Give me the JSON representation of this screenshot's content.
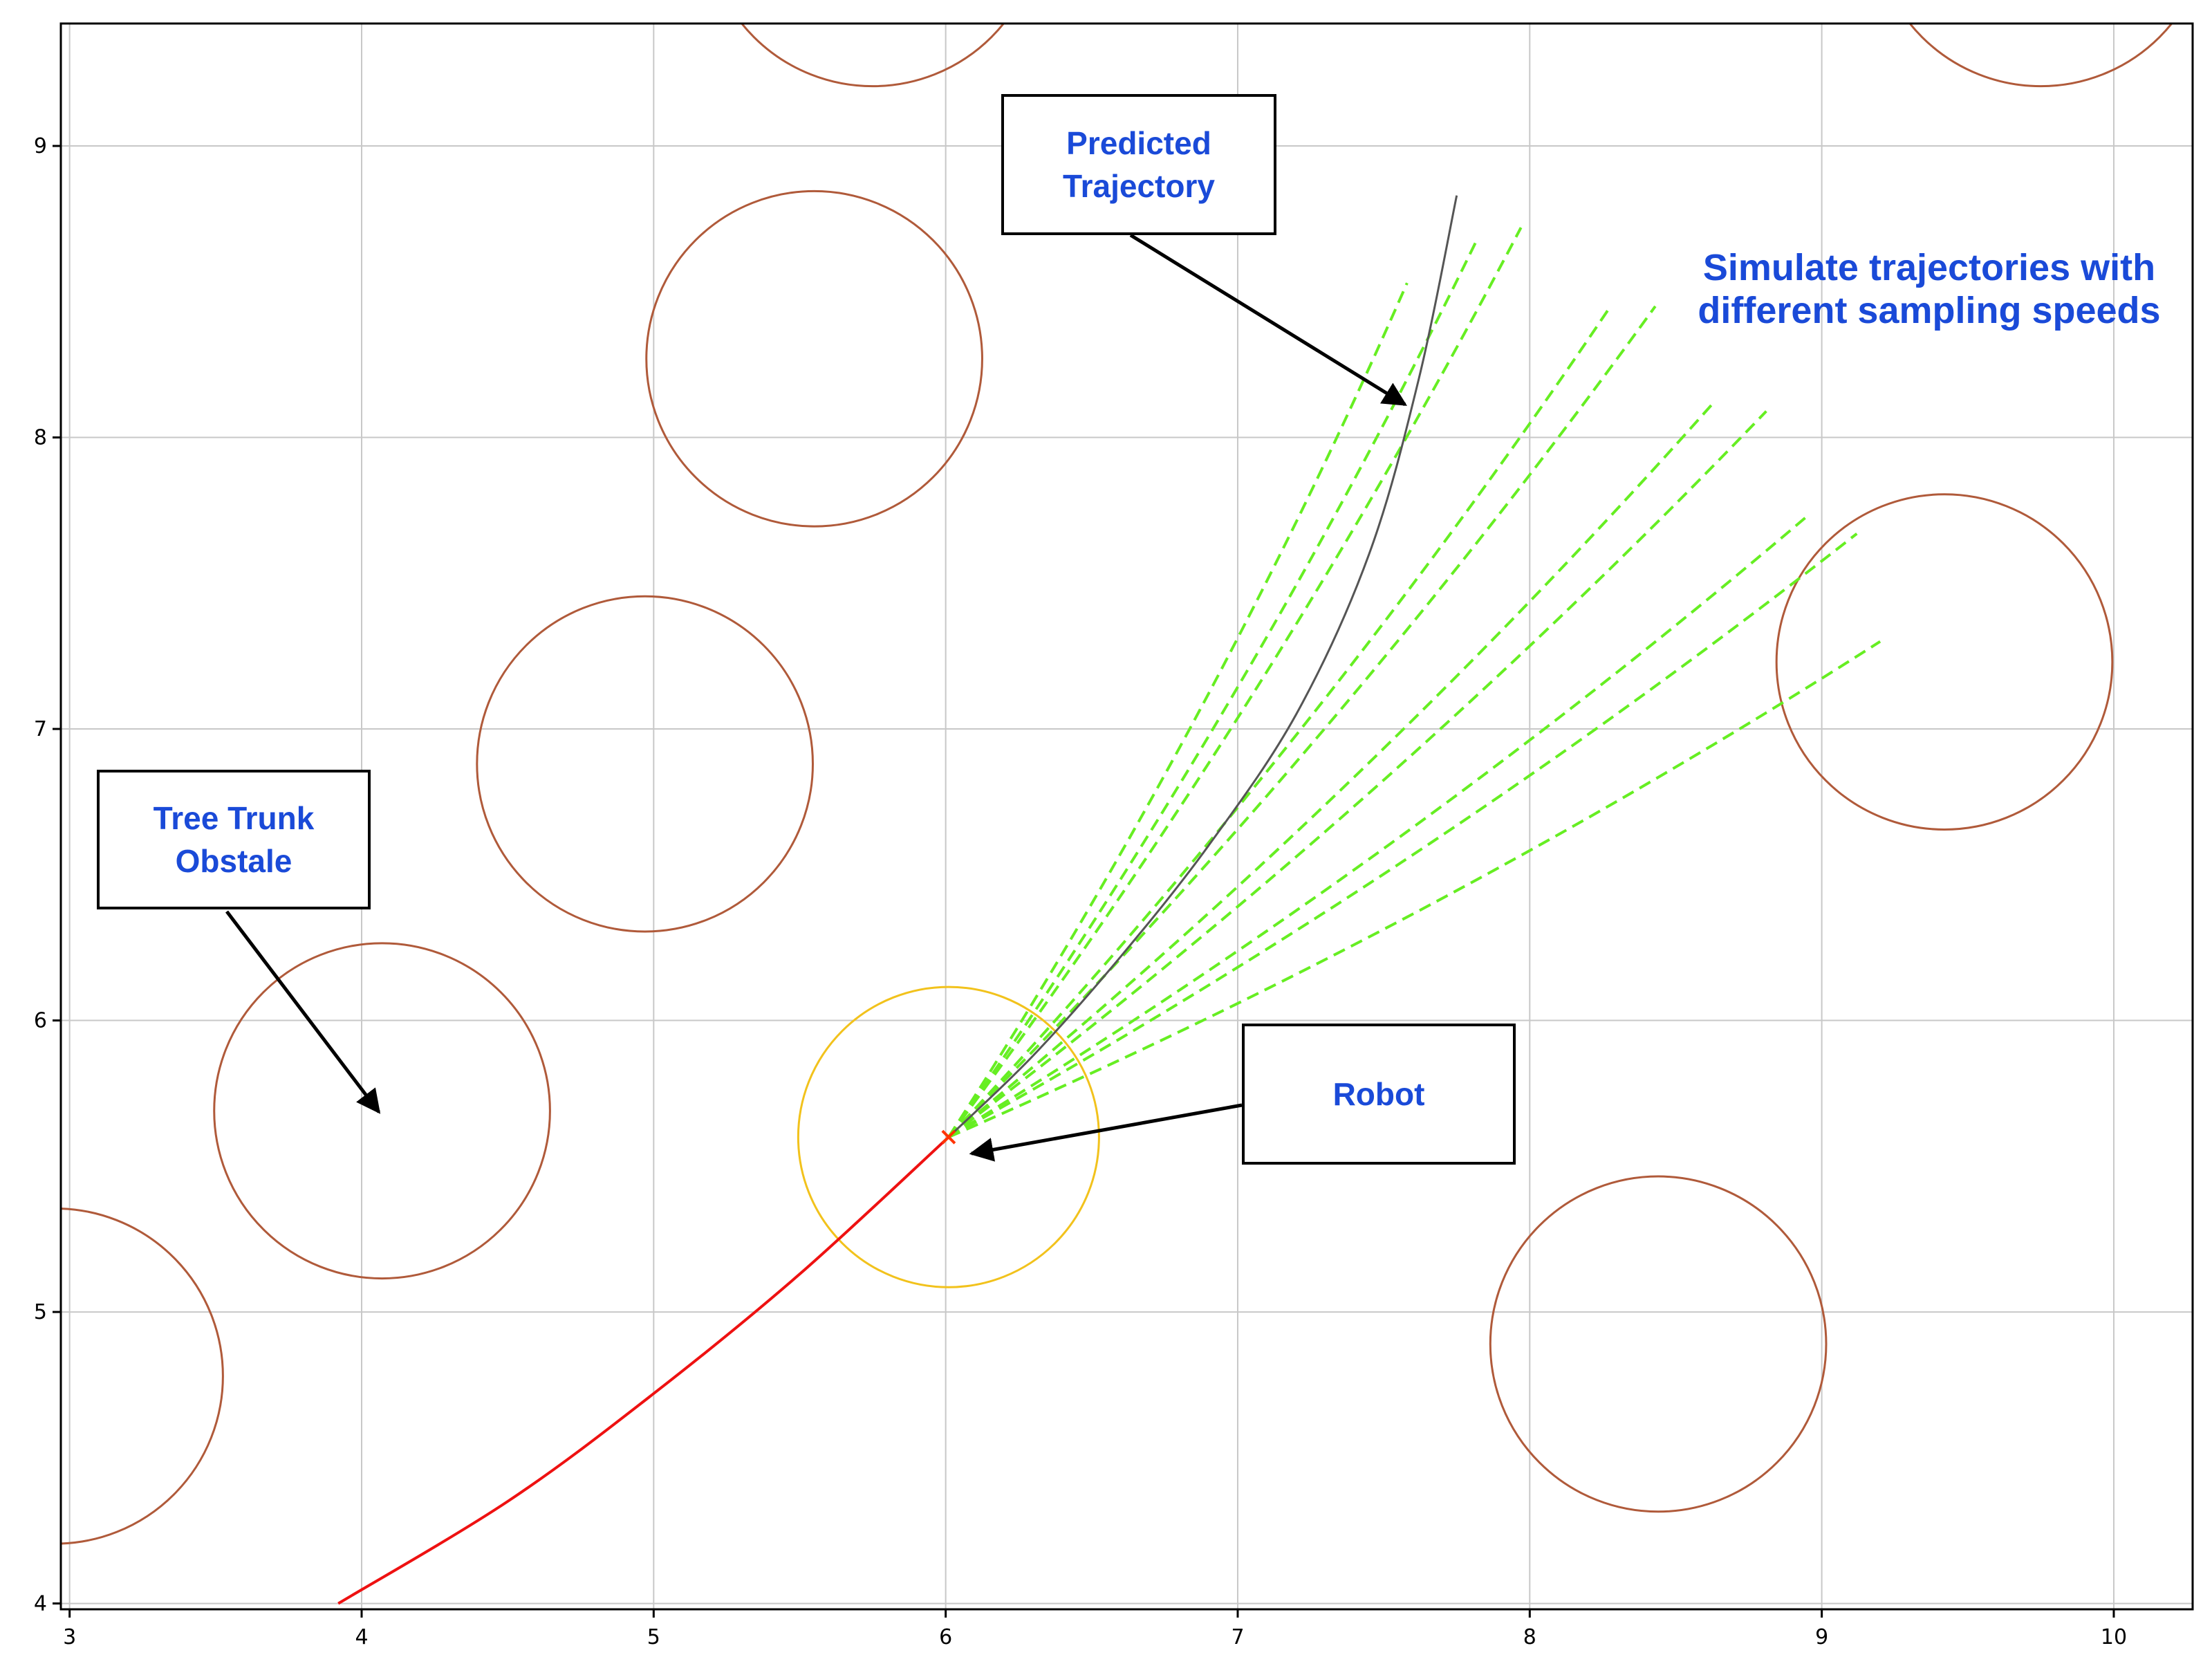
{
  "chart_data": {
    "type": "scatter",
    "xlim": [
      2.97,
      10.27
    ],
    "ylim": [
      3.98,
      9.42
    ],
    "x_ticks": [
      "3",
      "4",
      "5",
      "6",
      "7",
      "8",
      "9",
      "10"
    ],
    "y_ticks": [
      "4",
      "5",
      "6",
      "7",
      "8",
      "9"
    ],
    "grid": true,
    "obstacles": {
      "shape": "circle",
      "radius": 0.575,
      "color": "#b05a3a",
      "centers": [
        [
          5.75,
          9.78
        ],
        [
          9.75,
          9.78
        ],
        [
          5.55,
          8.27
        ],
        [
          4.97,
          6.88
        ],
        [
          4.07,
          5.69
        ],
        [
          2.95,
          4.78
        ],
        [
          9.42,
          7.23
        ],
        [
          8.44,
          4.89
        ]
      ]
    },
    "robot": {
      "position": [
        6.01,
        5.6
      ],
      "marker": "x",
      "marker_color": "#ff3300",
      "safety_radius": 0.515,
      "safety_color": "#f2c21c"
    },
    "path_traveled": {
      "color": "#ee1111",
      "points": [
        [
          3.92,
          4.0
        ],
        [
          4.5,
          4.35
        ],
        [
          5.0,
          4.72
        ],
        [
          5.5,
          5.13
        ],
        [
          6.01,
          5.6
        ]
      ]
    },
    "predicted_trajectory": {
      "color": "#555555",
      "points": [
        [
          6.01,
          5.6
        ],
        [
          6.3,
          5.88
        ],
        [
          6.6,
          6.22
        ],
        [
          6.9,
          6.6
        ],
        [
          7.2,
          7.05
        ],
        [
          7.45,
          7.6
        ],
        [
          7.62,
          8.2
        ],
        [
          7.75,
          8.83
        ]
      ]
    },
    "sampled_trajectories": {
      "color": "#66ee22",
      "style": "dashed",
      "endpoints": [
        [
          7.82,
          8.68
        ],
        [
          7.97,
          8.72
        ],
        [
          7.58,
          8.53
        ],
        [
          8.27,
          8.44
        ],
        [
          8.43,
          8.45
        ],
        [
          8.63,
          8.12
        ],
        [
          8.81,
          8.09
        ],
        [
          8.95,
          7.73
        ],
        [
          9.12,
          7.67
        ],
        [
          9.2,
          7.3
        ]
      ]
    }
  },
  "annotations": {
    "tree": {
      "text": "Tree Trunk\nObstale",
      "color": "#1a4ad8"
    },
    "predicted": {
      "text": "Predicted\nTrajectory",
      "color": "#1a4ad8"
    },
    "robot": {
      "text": "Robot",
      "color": "#1a4ad8"
    },
    "simulate": {
      "text": "Simulate trajectories with\ndifferent sampling speeds",
      "color": "#1a4ad8"
    }
  }
}
